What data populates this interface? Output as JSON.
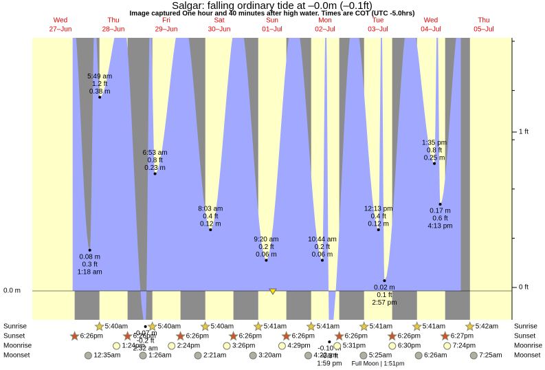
{
  "header": {
    "title": "Salgar: falling  ordinary tide at –0.0m (–0.1ft)",
    "subtitle": "Image captured One hour and 40 minutes after high water. Times are COT (UTC -5.0hrs)"
  },
  "axes": {
    "left_label": "0.0 m",
    "right_labels": [
      "0 ft",
      "1 ft"
    ]
  },
  "rows": [
    "Sunrise",
    "Sunset",
    "Moonrise",
    "Moonset"
  ],
  "days": [
    {
      "weekday": "Wed",
      "date": "27–Jun",
      "sunrise": null,
      "sunset": "6:26pm",
      "moonrise": null,
      "moonset": null,
      "tides": []
    },
    {
      "weekday": "Thu",
      "date": "28–Jun",
      "sunrise": "5:40am",
      "sunset": "6:26pm",
      "moonrise": "1:24pm",
      "moonset": "12:35am",
      "tides": [
        {
          "time": "1:18 am",
          "height_ft": {
            "value": 0.3,
            "label": "0.3 ft"
          },
          "height_m": {
            "value": 0.08,
            "label": "0.08 m"
          }
        },
        {
          "time": "5:49 am",
          "height_ft": {
            "value": 1.2,
            "label": "1.2 ft"
          },
          "height_m": {
            "value": 0.38,
            "label": "0.38 m"
          }
        }
      ]
    },
    {
      "weekday": "Fri",
      "date": "29–Jun",
      "sunrise": "5:40am",
      "sunset": "6:26pm",
      "moonrise": "2:24pm",
      "moonset": "1:26am",
      "tides": [
        {
          "time": "2:32 am",
          "height_ft": {
            "value": -0.2,
            "label": "-0.2 ft"
          },
          "height_m": {
            "value": -0.07,
            "label": "-0.07 m"
          }
        },
        {
          "time": "6:53 am",
          "height_ft": {
            "value": 0.8,
            "label": "0.8 ft"
          },
          "height_m": {
            "value": 0.23,
            "label": "0.23 m"
          }
        }
      ]
    },
    {
      "weekday": "Sat",
      "date": "30–Jun",
      "sunrise": "5:40am",
      "sunset": "6:26pm",
      "moonrise": "3:26pm",
      "moonset": "2:21am",
      "tides": [
        {
          "time": "8:03 am",
          "height_ft": {
            "value": 0.4,
            "label": "0.4 ft"
          },
          "height_m": {
            "value": 0.12,
            "label": "0.12 m"
          }
        }
      ]
    },
    {
      "weekday": "Sun",
      "date": "01–Jul",
      "sunrise": "5:41am",
      "sunset": "6:26pm",
      "moonrise": "4:29pm",
      "moonset": "3:20am",
      "tides": [
        {
          "time": "9:20 am",
          "height_ft": {
            "value": 0.2,
            "label": "0.2 ft"
          },
          "height_m": {
            "value": 0.06,
            "label": "0.06 m"
          }
        }
      ]
    },
    {
      "weekday": "Mon",
      "date": "02–Jul",
      "sunrise": "5:41am",
      "sunset": "6:26pm",
      "moonrise": "5:31pm",
      "moonset": "4:22am",
      "tides": [
        {
          "time": "10:44 am",
          "height_ft": {
            "value": 0.2,
            "label": "0.2 ft"
          },
          "height_m": {
            "value": 0.06,
            "label": "0.06 m"
          }
        },
        {
          "time": "1:59 pm",
          "height_ft": {
            "value": -0.3,
            "label": "-0.3 ft"
          },
          "height_m": {
            "value": -0.1,
            "label": "-0.10 m"
          }
        }
      ]
    },
    {
      "weekday": "Tue",
      "date": "03–Jul",
      "sunrise": "5:41am",
      "sunset": "6:26pm",
      "moonrise": "6:30pm",
      "moonset": "5:25am",
      "moon_phase": "Full Moon | 1:51pm",
      "tides": [
        {
          "time": "12:13 pm",
          "height_ft": {
            "value": 0.4,
            "label": "0.4 ft"
          },
          "height_m": {
            "value": 0.12,
            "label": "0.12 m"
          }
        },
        {
          "time": "2:57 pm",
          "height_ft": {
            "value": 0.1,
            "label": "0.1 ft"
          },
          "height_m": {
            "value": 0.02,
            "label": "0.02 m"
          }
        }
      ]
    },
    {
      "weekday": "Wed",
      "date": "04–Jul",
      "sunrise": "5:41am",
      "sunset": "6:27pm",
      "moonrise": "7:24pm",
      "moonset": "6:26am",
      "tides": [
        {
          "time": "1:35 pm",
          "height_ft": {
            "value": 0.8,
            "label": "0.8 ft"
          },
          "height_m": {
            "value": 0.25,
            "label": "0.25 m"
          }
        },
        {
          "time": "4:13 pm",
          "height_ft": {
            "value": 0.6,
            "label": "0.6 ft"
          },
          "height_m": {
            "value": 0.17,
            "label": "0.17 m"
          }
        }
      ]
    },
    {
      "weekday": "Thu",
      "date": "05–Jul",
      "sunrise": "5:42am",
      "sunset": null,
      "moonrise": null,
      "moonset": "7:25am",
      "tides": []
    }
  ]
}
